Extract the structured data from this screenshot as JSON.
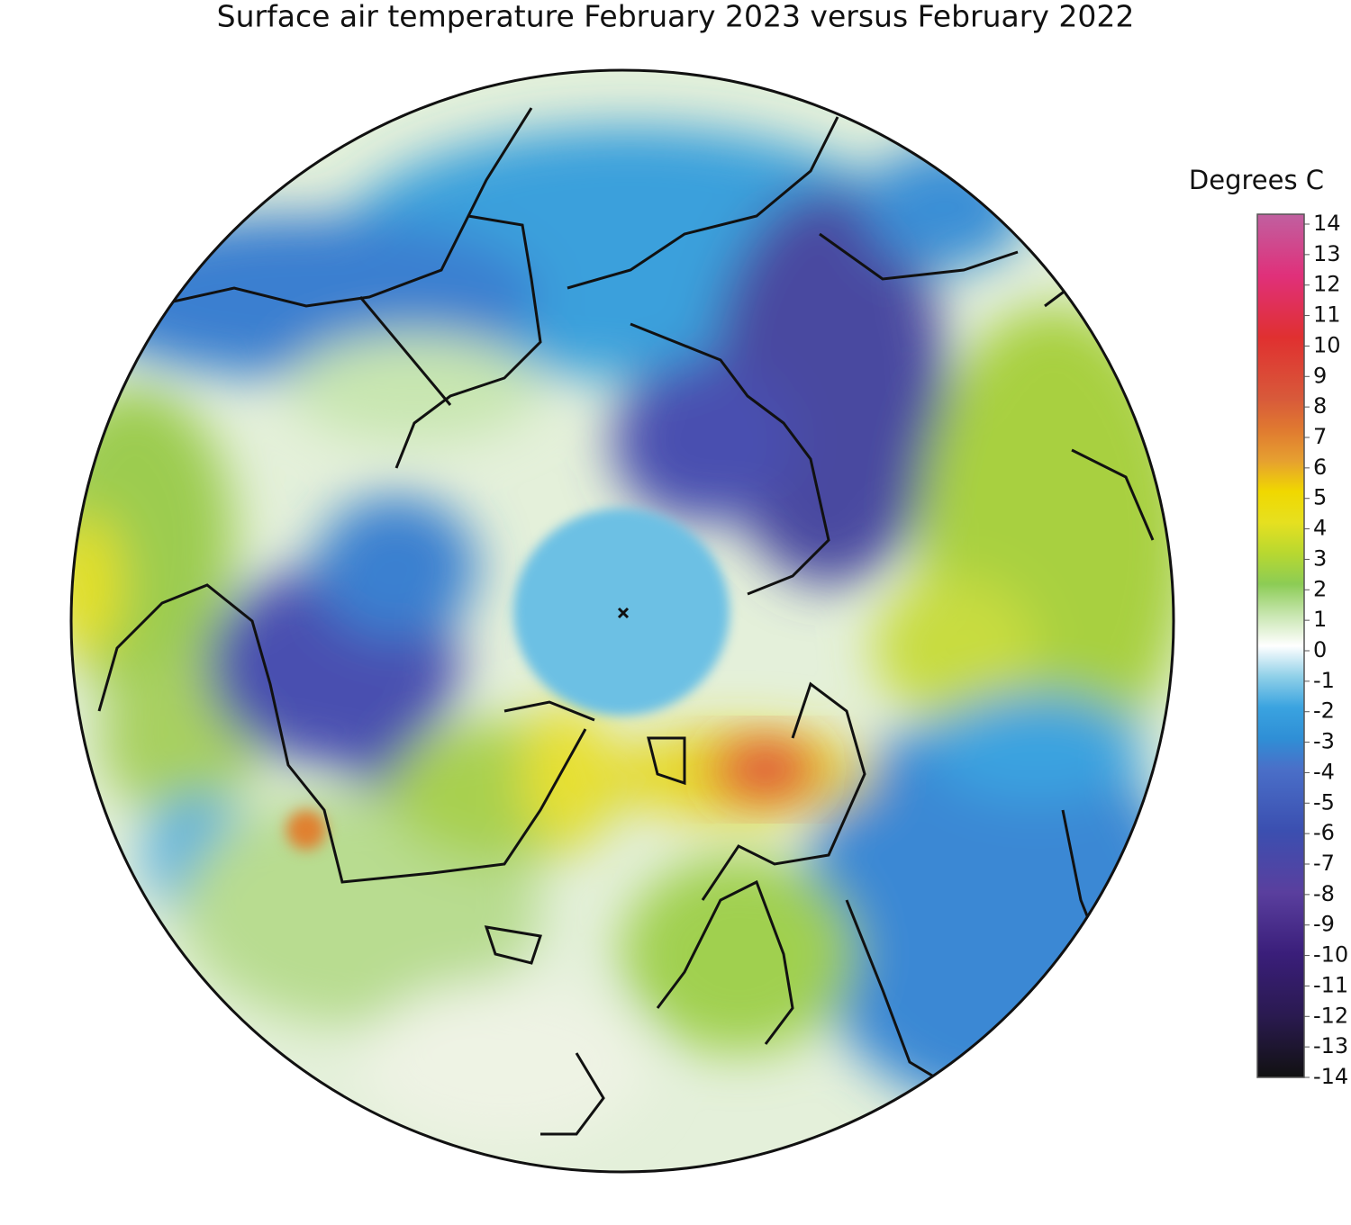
{
  "map": {
    "title": "Surface air temperature February 2023 versus February 2022",
    "colorbar": {
      "label": "Degrees C",
      "lim": [
        -14,
        14
      ],
      "ticks": [
        14,
        13,
        12,
        11,
        10,
        9,
        8,
        7,
        6,
        5,
        4,
        3,
        2,
        1,
        0,
        -1,
        -2,
        -3,
        -4,
        -5,
        -6,
        -7,
        -8,
        -9,
        -10,
        -11,
        -12,
        -13,
        -14
      ],
      "color_stops": [
        {
          "value": -14,
          "color": "#111111"
        },
        {
          "value": -12,
          "color": "#2a1a50"
        },
        {
          "value": -10,
          "color": "#3a1e7a"
        },
        {
          "value": -8,
          "color": "#5a3f9e"
        },
        {
          "value": -6,
          "color": "#3b4fb0"
        },
        {
          "value": -4,
          "color": "#4a6fc8"
        },
        {
          "value": -3,
          "color": "#2f8fd6"
        },
        {
          "value": -2,
          "color": "#3aa3e0"
        },
        {
          "value": -1,
          "color": "#8fd0e8"
        },
        {
          "value": 0,
          "color": "#ffffff"
        },
        {
          "value": 1,
          "color": "#c8e6b0"
        },
        {
          "value": 2,
          "color": "#8ccc55"
        },
        {
          "value": 3,
          "color": "#b8d830"
        },
        {
          "value": 4,
          "color": "#e6e020"
        },
        {
          "value": 5,
          "color": "#f0d800"
        },
        {
          "value": 6,
          "color": "#e6a030"
        },
        {
          "value": 7,
          "color": "#e07a30"
        },
        {
          "value": 8,
          "color": "#d85a3a"
        },
        {
          "value": 10,
          "color": "#e03030"
        },
        {
          "value": 12,
          "color": "#e0307a"
        },
        {
          "value": 14,
          "color": "#c060a0"
        }
      ]
    }
  }
}
